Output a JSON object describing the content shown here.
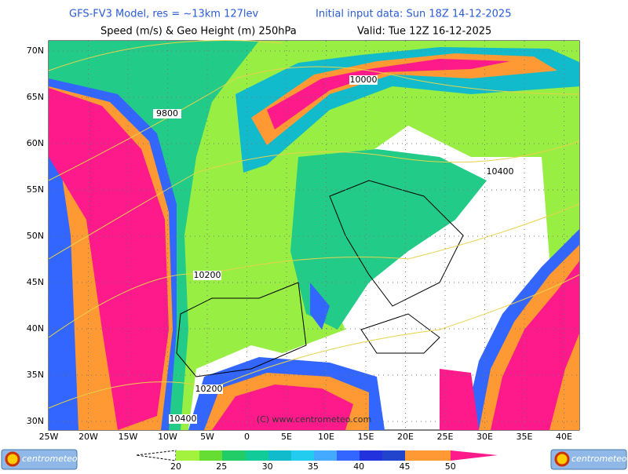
{
  "header": {
    "model": "GFS-FV3 Model, res = ~13km 127lev",
    "init": "Initial input data: Sun 18Z 14-12-2025",
    "field": "Speed (m/s) & Geo Height (m) 250hPa",
    "valid": "Valid: Tue 12Z 16-12-2025"
  },
  "map": {
    "lat_labels": [
      "70N",
      "65N",
      "60N",
      "55N",
      "50N",
      "45N",
      "40N",
      "35N",
      "30N"
    ],
    "lon_labels": [
      "25W",
      "20W",
      "15W",
      "10W",
      "5W",
      "0",
      "5E",
      "10E",
      "15E",
      "20E",
      "25E",
      "30E",
      "35E",
      "40E"
    ],
    "contour_labels": [
      "10000",
      "9800",
      "10400",
      "10200",
      "10200",
      "10400"
    ],
    "copyright": "(C) www.centrometeo.com"
  },
  "colorbar": {
    "ticks": [
      20,
      25,
      30,
      35,
      40,
      45,
      50
    ]
  },
  "logos": [
    "centrometeo",
    "centrometeo"
  ]
}
